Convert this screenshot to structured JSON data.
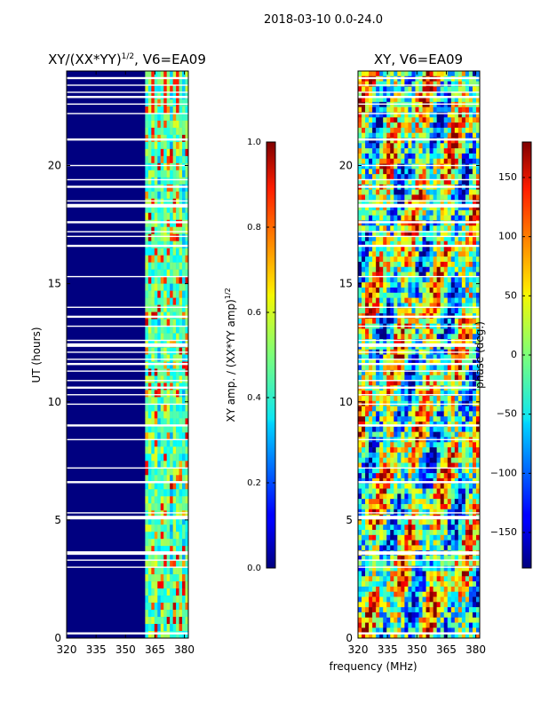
{
  "suptitle": "2018-03-10 0.0-24.0",
  "chart_data": [
    {
      "type": "heatmap",
      "title_prefix": "XY/(XX*YY)",
      "title_exponent": "1/2",
      "title_suffix": ", V6=EA09",
      "xlabel": "",
      "ylabel": "UT (hours)",
      "xlim": [
        320,
        382
      ],
      "ylim": [
        0,
        24
      ],
      "xticks": [
        320,
        335,
        350,
        365,
        380
      ],
      "yticks": [
        0,
        5,
        10,
        15,
        20
      ],
      "colorbar": {
        "label": "XY amp. / (XX*YY amp)",
        "label_exponent": "1/2",
        "range": [
          0.0,
          1.0
        ],
        "ticks": [
          "0.0",
          "0.2",
          "0.4",
          "0.6",
          "0.8",
          "1.0"
        ],
        "colormap": "jet"
      },
      "bright_band_MHz": [
        360,
        382
      ],
      "flagged_gaps_UT": [
        0.2,
        3.0,
        3.3,
        3.6,
        5.1,
        5.3,
        6.6,
        7.2,
        8.4,
        9.0,
        9.9,
        10.3,
        10.6,
        10.9,
        11.3,
        11.6,
        11.8,
        12.1,
        12.4,
        12.6,
        13.2,
        13.6,
        14.0,
        15.3,
        16.6,
        17.0,
        17.2,
        17.6,
        18.3,
        18.5,
        19.1,
        19.4,
        20.0,
        21.1,
        22.2,
        22.6,
        22.9,
        23.1,
        23.4,
        23.7
      ]
    },
    {
      "type": "heatmap",
      "title": "XY, V6=EA09",
      "xlabel": "frequency (MHz)",
      "ylabel": "",
      "xlim": [
        320,
        382
      ],
      "ylim": [
        0,
        24
      ],
      "xticks": [
        320,
        335,
        350,
        365,
        380
      ],
      "yticks": [
        0,
        5,
        10,
        15,
        20
      ],
      "colorbar": {
        "label": "phase (deg.)",
        "range": [
          -180,
          180
        ],
        "ticks": [
          "−150",
          "−100",
          "−50",
          "0",
          "50",
          "100",
          "150"
        ],
        "colormap": "jet"
      },
      "flagged_gaps_UT": [
        0.2,
        3.0,
        3.3,
        3.6,
        5.1,
        5.3,
        6.6,
        7.2,
        8.4,
        9.0,
        9.9,
        10.3,
        10.6,
        10.9,
        11.3,
        11.6,
        11.8,
        12.1,
        12.4,
        12.6,
        13.2,
        13.6,
        14.0,
        15.3,
        16.6,
        17.0,
        17.2,
        17.6,
        18.3,
        18.5,
        19.1,
        19.4,
        20.0,
        21.1,
        22.2,
        22.6,
        22.9,
        23.1,
        23.4,
        23.7
      ]
    }
  ]
}
